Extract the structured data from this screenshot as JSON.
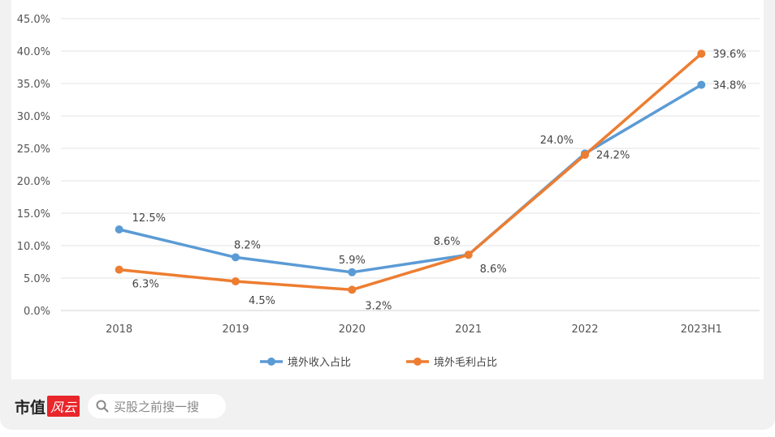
{
  "chart_data": {
    "type": "line",
    "categories": [
      "2018",
      "2019",
      "2020",
      "2021",
      "2022",
      "2023H1"
    ],
    "series": [
      {
        "name": "境外收入占比",
        "color": "#5b9bd5",
        "values": [
          12.5,
          8.2,
          5.9,
          8.6,
          24.2,
          34.8
        ],
        "labels": [
          "12.5%",
          "8.2%",
          "5.9%",
          "8.6%",
          "24.2%",
          "34.8%"
        ]
      },
      {
        "name": "境外毛利占比",
        "color": "#ed7d31",
        "values": [
          6.3,
          4.5,
          3.2,
          8.6,
          24.0,
          39.6
        ],
        "labels": [
          "6.3%",
          "4.5%",
          "3.2%",
          "8.6%",
          "24.0%",
          "39.6%"
        ]
      }
    ],
    "yticks": [
      "0.0%",
      "5.0%",
      "10.0%",
      "15.0%",
      "20.0%",
      "25.0%",
      "30.0%",
      "35.0%",
      "40.0%",
      "45.0%"
    ],
    "ylim": [
      0,
      45
    ],
    "grid": true,
    "legend": "bottom"
  },
  "footer": {
    "brand": "市值",
    "brand_logo": "风云",
    "search_placeholder": "买股之前搜一搜"
  }
}
